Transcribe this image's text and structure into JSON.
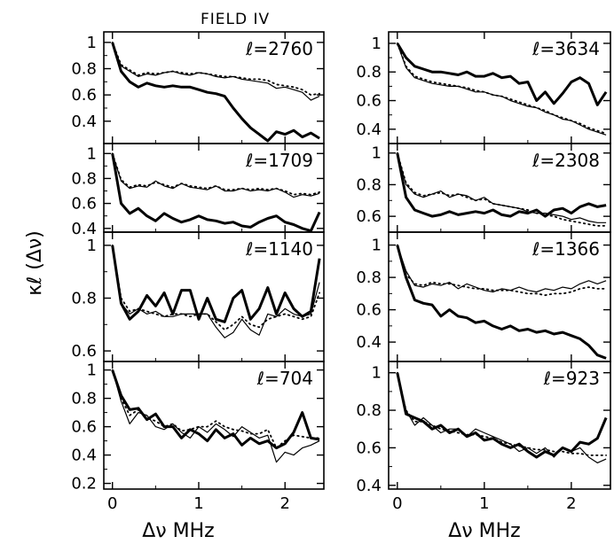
{
  "figure": {
    "title": "FIELD IV",
    "xlabel": "Δν MHz",
    "ylabel": "κℓ (Δν)"
  },
  "chart_data": [
    {
      "type": "line",
      "label": "ℓ=2760",
      "column": 1,
      "row": 1,
      "xlim": [
        -0.1,
        2.45
      ],
      "ylim": [
        0.23,
        1.08
      ],
      "yticks": [
        0.4,
        0.6,
        0.8,
        1
      ],
      "ytick_labels": [
        "0.4",
        "0.6",
        "0.8",
        "1"
      ],
      "x": [
        0,
        0.1,
        0.2,
        0.3,
        0.4,
        0.5,
        0.6,
        0.7,
        0.8,
        0.9,
        1.0,
        1.1,
        1.2,
        1.3,
        1.4,
        1.5,
        1.6,
        1.7,
        1.8,
        1.9,
        2.0,
        2.1,
        2.2,
        2.3,
        2.4
      ],
      "series": [
        {
          "style": "thick",
          "values": [
            1.0,
            0.78,
            0.7,
            0.66,
            0.69,
            0.67,
            0.66,
            0.67,
            0.66,
            0.66,
            0.64,
            0.62,
            0.61,
            0.59,
            0.5,
            0.42,
            0.35,
            0.3,
            0.25,
            0.32,
            0.3,
            0.33,
            0.28,
            0.31,
            0.27
          ]
        },
        {
          "style": "thin",
          "values": [
            1.0,
            0.82,
            0.78,
            0.74,
            0.76,
            0.75,
            0.77,
            0.78,
            0.76,
            0.75,
            0.77,
            0.76,
            0.74,
            0.73,
            0.74,
            0.72,
            0.71,
            0.7,
            0.69,
            0.65,
            0.66,
            0.64,
            0.62,
            0.56,
            0.59
          ]
        },
        {
          "style": "dotted",
          "values": [
            1.0,
            0.83,
            0.79,
            0.75,
            0.77,
            0.76,
            0.77,
            0.78,
            0.77,
            0.76,
            0.77,
            0.76,
            0.75,
            0.74,
            0.74,
            0.73,
            0.72,
            0.72,
            0.71,
            0.68,
            0.67,
            0.66,
            0.64,
            0.6,
            0.61
          ]
        }
      ]
    },
    {
      "type": "line",
      "label": "ℓ=3634",
      "column": 2,
      "row": 1,
      "xlim": [
        -0.1,
        2.45
      ],
      "ylim": [
        0.3,
        1.08
      ],
      "yticks": [
        0.4,
        0.6,
        0.8,
        1
      ],
      "ytick_labels": [
        "0.4",
        "0.6",
        "0.8",
        "1"
      ],
      "x": [
        0,
        0.1,
        0.2,
        0.3,
        0.4,
        0.5,
        0.6,
        0.7,
        0.8,
        0.9,
        1.0,
        1.1,
        1.2,
        1.3,
        1.4,
        1.5,
        1.6,
        1.7,
        1.8,
        1.9,
        2.0,
        2.1,
        2.2,
        2.3,
        2.4
      ],
      "series": [
        {
          "style": "thick",
          "values": [
            1.0,
            0.9,
            0.84,
            0.82,
            0.8,
            0.8,
            0.79,
            0.78,
            0.8,
            0.77,
            0.77,
            0.79,
            0.76,
            0.77,
            0.72,
            0.73,
            0.6,
            0.66,
            0.58,
            0.65,
            0.73,
            0.76,
            0.72,
            0.57,
            0.66
          ]
        },
        {
          "style": "thin",
          "values": [
            1.0,
            0.83,
            0.76,
            0.74,
            0.72,
            0.71,
            0.7,
            0.7,
            0.68,
            0.66,
            0.66,
            0.64,
            0.63,
            0.6,
            0.58,
            0.56,
            0.55,
            0.52,
            0.5,
            0.47,
            0.46,
            0.43,
            0.4,
            0.38,
            0.36
          ]
        },
        {
          "style": "dotted",
          "values": [
            1.0,
            0.84,
            0.77,
            0.75,
            0.73,
            0.72,
            0.71,
            0.7,
            0.69,
            0.67,
            0.66,
            0.64,
            0.63,
            0.61,
            0.59,
            0.57,
            0.55,
            0.53,
            0.5,
            0.48,
            0.46,
            0.44,
            0.41,
            0.39,
            0.37
          ]
        }
      ]
    },
    {
      "type": "line",
      "label": "ℓ=1709",
      "column": 1,
      "row": 2,
      "xlim": [
        -0.1,
        2.45
      ],
      "ylim": [
        0.37,
        1.08
      ],
      "yticks": [
        0.4,
        0.6,
        0.8,
        1
      ],
      "ytick_labels": [
        "0.4",
        "0.6",
        "0.8",
        "1"
      ],
      "x": [
        0,
        0.1,
        0.2,
        0.3,
        0.4,
        0.5,
        0.6,
        0.7,
        0.8,
        0.9,
        1.0,
        1.1,
        1.2,
        1.3,
        1.4,
        1.5,
        1.6,
        1.7,
        1.8,
        1.9,
        2.0,
        2.1,
        2.2,
        2.3,
        2.4
      ],
      "series": [
        {
          "style": "thick",
          "values": [
            1.0,
            0.6,
            0.52,
            0.56,
            0.5,
            0.46,
            0.52,
            0.48,
            0.45,
            0.47,
            0.5,
            0.47,
            0.46,
            0.44,
            0.45,
            0.42,
            0.41,
            0.45,
            0.48,
            0.5,
            0.45,
            0.43,
            0.4,
            0.38,
            0.53
          ]
        },
        {
          "style": "thin",
          "values": [
            1.0,
            0.78,
            0.72,
            0.74,
            0.73,
            0.78,
            0.74,
            0.72,
            0.76,
            0.73,
            0.72,
            0.71,
            0.74,
            0.7,
            0.7,
            0.72,
            0.7,
            0.71,
            0.7,
            0.72,
            0.69,
            0.65,
            0.67,
            0.66,
            0.68
          ]
        },
        {
          "style": "dotted",
          "values": [
            1.0,
            0.79,
            0.73,
            0.75,
            0.74,
            0.77,
            0.75,
            0.73,
            0.76,
            0.74,
            0.73,
            0.72,
            0.74,
            0.71,
            0.71,
            0.72,
            0.71,
            0.72,
            0.71,
            0.72,
            0.7,
            0.67,
            0.68,
            0.67,
            0.69
          ]
        }
      ]
    },
    {
      "type": "line",
      "label": "ℓ=2308",
      "column": 2,
      "row": 2,
      "xlim": [
        -0.1,
        2.45
      ],
      "ylim": [
        0.5,
        1.06
      ],
      "yticks": [
        0.6,
        0.8,
        1
      ],
      "ytick_labels": [
        "0.6",
        "0.8",
        "1"
      ],
      "x": [
        0,
        0.1,
        0.2,
        0.3,
        0.4,
        0.5,
        0.6,
        0.7,
        0.8,
        0.9,
        1.0,
        1.1,
        1.2,
        1.3,
        1.4,
        1.5,
        1.6,
        1.7,
        1.8,
        1.9,
        2.0,
        2.1,
        2.2,
        2.3,
        2.4
      ],
      "series": [
        {
          "style": "thick",
          "values": [
            1.0,
            0.72,
            0.64,
            0.62,
            0.6,
            0.61,
            0.63,
            0.61,
            0.62,
            0.63,
            0.62,
            0.64,
            0.61,
            0.6,
            0.63,
            0.62,
            0.64,
            0.6,
            0.64,
            0.65,
            0.62,
            0.66,
            0.68,
            0.66,
            0.67
          ]
        },
        {
          "style": "thin",
          "values": [
            1.0,
            0.8,
            0.74,
            0.72,
            0.74,
            0.76,
            0.72,
            0.74,
            0.73,
            0.7,
            0.72,
            0.68,
            0.67,
            0.66,
            0.65,
            0.63,
            0.62,
            0.62,
            0.61,
            0.6,
            0.58,
            0.59,
            0.57,
            0.56,
            0.56
          ]
        },
        {
          "style": "dotted",
          "values": [
            1.0,
            0.81,
            0.75,
            0.73,
            0.74,
            0.75,
            0.73,
            0.74,
            0.72,
            0.7,
            0.71,
            0.68,
            0.67,
            0.66,
            0.65,
            0.64,
            0.62,
            0.61,
            0.6,
            0.58,
            0.57,
            0.56,
            0.55,
            0.54,
            0.54
          ]
        }
      ]
    },
    {
      "type": "line",
      "label": "ℓ=1140",
      "column": 1,
      "row": 3,
      "xlim": [
        -0.1,
        2.45
      ],
      "ylim": [
        0.56,
        1.05
      ],
      "yticks": [
        0.6,
        0.8,
        1
      ],
      "ytick_labels": [
        "0.6",
        "0.8",
        "1"
      ],
      "x": [
        0,
        0.1,
        0.2,
        0.3,
        0.4,
        0.5,
        0.6,
        0.7,
        0.8,
        0.9,
        1.0,
        1.1,
        1.2,
        1.3,
        1.4,
        1.5,
        1.6,
        1.7,
        1.8,
        1.9,
        2.0,
        2.1,
        2.2,
        2.3,
        2.4
      ],
      "series": [
        {
          "style": "thick",
          "values": [
            1.0,
            0.78,
            0.72,
            0.75,
            0.81,
            0.77,
            0.82,
            0.74,
            0.83,
            0.83,
            0.72,
            0.8,
            0.72,
            0.71,
            0.8,
            0.83,
            0.72,
            0.76,
            0.84,
            0.74,
            0.82,
            0.76,
            0.73,
            0.75,
            0.95
          ]
        },
        {
          "style": "thin",
          "values": [
            1.0,
            0.78,
            0.74,
            0.76,
            0.74,
            0.75,
            0.73,
            0.73,
            0.74,
            0.74,
            0.74,
            0.74,
            0.69,
            0.65,
            0.67,
            0.72,
            0.68,
            0.66,
            0.74,
            0.73,
            0.76,
            0.74,
            0.73,
            0.74,
            0.86
          ]
        },
        {
          "style": "dotted",
          "values": [
            1.0,
            0.8,
            0.75,
            0.76,
            0.75,
            0.74,
            0.73,
            0.74,
            0.74,
            0.73,
            0.74,
            0.74,
            0.71,
            0.68,
            0.7,
            0.73,
            0.7,
            0.69,
            0.72,
            0.73,
            0.74,
            0.73,
            0.72,
            0.73,
            0.82
          ]
        }
      ]
    },
    {
      "type": "line",
      "label": "ℓ=1366",
      "column": 2,
      "row": 3,
      "xlim": [
        -0.1,
        2.45
      ],
      "ylim": [
        0.28,
        1.08
      ],
      "yticks": [
        0.4,
        0.6,
        0.8,
        1
      ],
      "ytick_labels": [
        "0.4",
        "0.6",
        "0.8",
        "1"
      ],
      "x": [
        0,
        0.1,
        0.2,
        0.3,
        0.4,
        0.5,
        0.6,
        0.7,
        0.8,
        0.9,
        1.0,
        1.1,
        1.2,
        1.3,
        1.4,
        1.5,
        1.6,
        1.7,
        1.8,
        1.9,
        2.0,
        2.1,
        2.2,
        2.3,
        2.4
      ],
      "series": [
        {
          "style": "thick",
          "values": [
            1.0,
            0.8,
            0.66,
            0.64,
            0.63,
            0.56,
            0.6,
            0.56,
            0.55,
            0.52,
            0.53,
            0.5,
            0.48,
            0.5,
            0.47,
            0.48,
            0.46,
            0.47,
            0.45,
            0.46,
            0.44,
            0.42,
            0.38,
            0.32,
            0.3
          ]
        },
        {
          "style": "thin",
          "values": [
            1.0,
            0.84,
            0.75,
            0.74,
            0.76,
            0.75,
            0.77,
            0.73,
            0.76,
            0.74,
            0.72,
            0.71,
            0.73,
            0.72,
            0.74,
            0.72,
            0.71,
            0.73,
            0.72,
            0.74,
            0.73,
            0.76,
            0.78,
            0.76,
            0.78
          ]
        },
        {
          "style": "dotted",
          "values": [
            1.0,
            0.82,
            0.76,
            0.75,
            0.77,
            0.76,
            0.76,
            0.75,
            0.74,
            0.73,
            0.73,
            0.72,
            0.72,
            0.72,
            0.71,
            0.7,
            0.7,
            0.69,
            0.7,
            0.7,
            0.71,
            0.73,
            0.74,
            0.73,
            0.73
          ]
        }
      ]
    },
    {
      "type": "line",
      "label": "ℓ=704",
      "column": 1,
      "row": 4,
      "xlim": [
        -0.1,
        2.45
      ],
      "ylim": [
        0.16,
        1.06
      ],
      "yticks": [
        0.2,
        0.4,
        0.6,
        0.8,
        1
      ],
      "ytick_labels": [
        "0.2",
        "0.4",
        "0.6",
        "0.8",
        "1"
      ],
      "x": [
        0,
        0.1,
        0.2,
        0.3,
        0.4,
        0.5,
        0.6,
        0.7,
        0.8,
        0.9,
        1.0,
        1.1,
        1.2,
        1.3,
        1.4,
        1.5,
        1.6,
        1.7,
        1.8,
        1.9,
        2.0,
        2.1,
        2.2,
        2.3,
        2.4
      ],
      "series": [
        {
          "style": "thick",
          "values": [
            1.0,
            0.82,
            0.72,
            0.73,
            0.65,
            0.69,
            0.6,
            0.6,
            0.52,
            0.58,
            0.55,
            0.5,
            0.58,
            0.52,
            0.55,
            0.47,
            0.52,
            0.48,
            0.5,
            0.45,
            0.48,
            0.56,
            0.7,
            0.52,
            0.51
          ]
        },
        {
          "style": "thin",
          "values": [
            1.0,
            0.78,
            0.62,
            0.7,
            0.68,
            0.6,
            0.58,
            0.62,
            0.56,
            0.52,
            0.6,
            0.56,
            0.62,
            0.58,
            0.53,
            0.6,
            0.56,
            0.52,
            0.54,
            0.35,
            0.42,
            0.4,
            0.45,
            0.47,
            0.5
          ]
        },
        {
          "style": "dotted",
          "values": [
            1.0,
            0.8,
            0.68,
            0.72,
            0.66,
            0.64,
            0.6,
            0.62,
            0.57,
            0.58,
            0.6,
            0.6,
            0.64,
            0.6,
            0.58,
            0.57,
            0.55,
            0.55,
            0.58,
            0.45,
            0.5,
            0.54,
            0.53,
            0.52,
            0.52
          ]
        }
      ]
    },
    {
      "type": "line",
      "label": "ℓ=923",
      "column": 2,
      "row": 4,
      "xlim": [
        -0.1,
        2.45
      ],
      "ylim": [
        0.38,
        1.06
      ],
      "yticks": [
        0.4,
        0.6,
        0.8,
        1
      ],
      "ytick_labels": [
        "0.4",
        "0.6",
        "0.8",
        "1"
      ],
      "x": [
        0,
        0.1,
        0.2,
        0.3,
        0.4,
        0.5,
        0.6,
        0.7,
        0.8,
        0.9,
        1.0,
        1.1,
        1.2,
        1.3,
        1.4,
        1.5,
        1.6,
        1.7,
        1.8,
        1.9,
        2.0,
        2.1,
        2.2,
        2.3,
        2.4
      ],
      "series": [
        {
          "style": "thick",
          "values": [
            1.0,
            0.78,
            0.76,
            0.74,
            0.7,
            0.72,
            0.68,
            0.7,
            0.66,
            0.68,
            0.64,
            0.65,
            0.62,
            0.6,
            0.62,
            0.58,
            0.55,
            0.58,
            0.56,
            0.6,
            0.58,
            0.63,
            0.62,
            0.65,
            0.76
          ]
        },
        {
          "style": "thin",
          "values": [
            1.0,
            0.8,
            0.72,
            0.76,
            0.72,
            0.68,
            0.7,
            0.7,
            0.66,
            0.7,
            0.68,
            0.66,
            0.64,
            0.62,
            0.58,
            0.6,
            0.57,
            0.6,
            0.55,
            0.6,
            0.58,
            0.6,
            0.55,
            0.52,
            0.54
          ]
        },
        {
          "style": "dotted",
          "values": [
            1.0,
            0.8,
            0.74,
            0.74,
            0.72,
            0.7,
            0.69,
            0.68,
            0.67,
            0.67,
            0.66,
            0.65,
            0.63,
            0.62,
            0.61,
            0.6,
            0.59,
            0.59,
            0.58,
            0.58,
            0.57,
            0.57,
            0.56,
            0.56,
            0.56
          ]
        }
      ]
    }
  ]
}
